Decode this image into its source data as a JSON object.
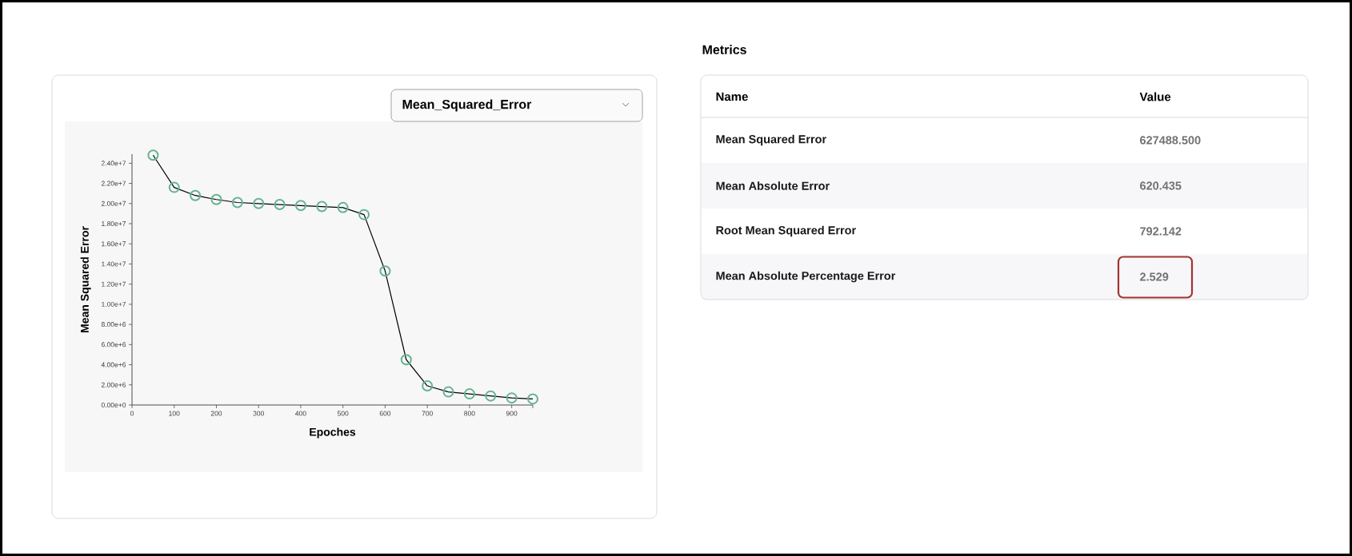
{
  "chart_data": [
    {
      "type": "line",
      "xlabel": "Epoches",
      "ylabel": "Mean Squared Error",
      "annotations": [
        "Mean_Squared_Error"
      ],
      "x": [
        50,
        100,
        150,
        200,
        250,
        300,
        350,
        400,
        450,
        500,
        550,
        600,
        650,
        700,
        750,
        800,
        850,
        900,
        950
      ],
      "series": [
        {
          "color": "#66b394",
          "values": [
            24800000,
            21600000,
            20800000,
            20400000,
            20100000,
            20000000,
            19900000,
            19800000,
            19700000,
            19600000,
            18900000,
            13300000,
            4500000,
            1900000,
            1300000,
            1100000,
            900000,
            700000,
            600000
          ]
        }
      ],
      "xlim": [
        0,
        950
      ],
      "ylim": [
        0,
        24900000
      ],
      "xticks": [
        0,
        100,
        200,
        300,
        400,
        500,
        600,
        700,
        800,
        900,
        {
          "value": 950,
          "label": null
        }
      ],
      "yticks": [
        {
          "value": 0,
          "label": "0.00e+0"
        },
        {
          "value": 2000000,
          "label": "2.00e+6"
        },
        {
          "value": 4000000,
          "label": "4.00e+6"
        },
        {
          "value": 6000000,
          "label": "6.00e+6"
        },
        {
          "value": 8000000,
          "label": "8.00e+6"
        },
        {
          "value": 10000000,
          "label": "1.00e+7"
        },
        {
          "value": 12000000,
          "label": "1.20e+7"
        },
        {
          "value": 14000000,
          "label": "1.40e+7"
        },
        {
          "value": 16000000,
          "label": "1.60e+7"
        },
        {
          "value": 18000000,
          "label": "1.80e+7"
        },
        {
          "value": 20000000,
          "label": "2.00e+7"
        },
        {
          "value": 22000000,
          "label": "2.20e+7"
        },
        {
          "value": 24000000,
          "label": "2.40e+7"
        }
      ],
      "marker": "circle",
      "line_style": "solid"
    },
    {
      "type": "other",
      "title": "Metrics",
      "annotations": [
        "Name",
        "Value",
        "Mean Squared Error",
        "627488.500",
        "Mean Absolute Error",
        "620.435",
        "Root Mean Squared Error",
        "792.142",
        "Mean Absolute Percentage Error",
        "2.529"
      ]
    }
  ]
}
